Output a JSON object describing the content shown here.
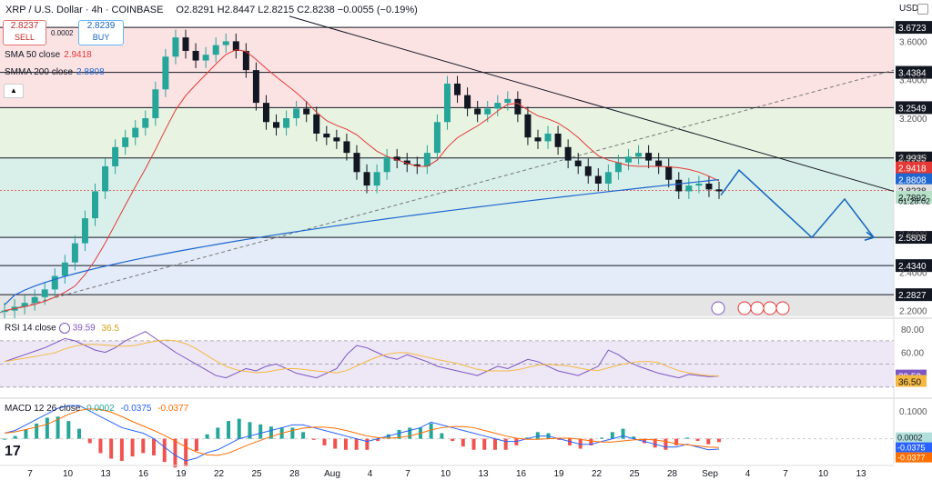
{
  "header": {
    "symbol": "XRP / U.S. Dollar · 4h · COINBASE",
    "ohlc": "O2.8291 H2.8447 L2.8215 C2.8238 −0.0055 (−0.19%)",
    "sell_price": "2.8237",
    "sell_label": "SELL",
    "buy_price": "2.8239",
    "buy_label": "BUY",
    "spread": "0.0002"
  },
  "legend": {
    "sma50_label": "SMA 50 close",
    "sma50_value": "2.9418",
    "smma200_label": "SMMA 200 close",
    "smma200_value": "2.8808"
  },
  "axis": {
    "currency": "USD",
    "time_labels": [
      "7",
      "10",
      "13",
      "16",
      "19",
      "22",
      "25",
      "28",
      "Aug",
      "4",
      "7",
      "10",
      "13",
      "16",
      "19",
      "22",
      "25",
      "28",
      "Sep",
      "4",
      "7",
      "10",
      "13"
    ]
  },
  "colors": {
    "candle_up": "#26a69a",
    "candle_down": "#131722",
    "sma50": "#e53935",
    "smma200": "#1e66d0",
    "projection": "#1565c0",
    "zone_red": "#fbe3e4",
    "zone_green": "#e8f3e2",
    "zone_teal": "#d9efe9",
    "zone_blue": "#e3ecf8",
    "zone_gray": "#e5e5e5",
    "rsi": "#7e57c2",
    "rsi_ma": "#f5b942",
    "macd": "#2962ff",
    "macd_signal": "#ff6d00"
  },
  "chart_data": [
    {
      "type": "candlestick",
      "price_levels": [
        3.6723,
        3.4384,
        3.2549,
        2.9935,
        2.5808,
        2.434,
        2.2827
      ],
      "y_ticks": [
        3.6,
        3.4,
        3.2,
        3.0,
        2.8,
        2.6,
        2.4,
        2.2
      ],
      "ylim": [
        2.17,
        3.72
      ],
      "current_price": 2.8238,
      "countdown": "01:28:02",
      "support_level": 2.7892,
      "sma50_last": 2.9418,
      "smma200_last": 2.8808,
      "price_path": [
        2.2,
        2.22,
        2.24,
        2.27,
        2.31,
        2.38,
        2.45,
        2.55,
        2.68,
        2.82,
        2.95,
        3.05,
        3.1,
        3.15,
        3.2,
        3.35,
        3.52,
        3.62,
        3.55,
        3.5,
        3.53,
        3.58,
        3.6,
        3.55,
        3.45,
        3.28,
        3.18,
        3.15,
        3.2,
        3.25,
        3.22,
        3.12,
        3.1,
        3.08,
        3.02,
        2.92,
        2.85,
        2.92,
        3.0,
        2.98,
        2.96,
        2.95,
        3.02,
        3.18,
        3.38,
        3.32,
        3.25,
        3.22,
        3.25,
        3.28,
        3.3,
        3.22,
        3.1,
        3.08,
        3.12,
        3.05,
        2.98,
        2.95,
        2.9,
        2.86,
        2.92,
        2.97,
        3.0,
        3.02,
        2.98,
        2.95,
        2.88,
        2.82,
        2.85,
        2.86,
        2.83,
        2.82
      ]
    },
    {
      "type": "line",
      "name": "RSI 14 close",
      "last_value": 39.59,
      "ma_value": 36.5,
      "y_ticks": [
        80.0,
        60.0
      ],
      "ylim": [
        22,
        88
      ],
      "bands": [
        70,
        50,
        30
      ],
      "values": [
        52,
        55,
        58,
        61,
        64,
        68,
        72,
        70,
        66,
        62,
        60,
        64,
        70,
        74,
        78,
        72,
        66,
        60,
        55,
        50,
        45,
        40,
        38,
        42,
        46,
        44,
        48,
        50,
        46,
        42,
        40,
        38,
        42,
        46,
        58,
        66,
        64,
        60,
        56,
        54,
        58,
        55,
        52,
        48,
        46,
        44,
        42,
        40,
        44,
        48,
        46,
        50,
        54,
        52,
        48,
        44,
        42,
        40,
        44,
        48,
        62,
        58,
        52,
        48,
        45,
        42,
        40,
        38,
        41,
        40,
        39,
        39.59
      ]
    },
    {
      "type": "line",
      "name": "MACD 12 26 close",
      "macd_value": 0.0002,
      "line_value": -0.0375,
      "signal_value": -0.0377,
      "y_ticks": [
        0.1,
        0.0
      ],
      "ylim": [
        -0.09,
        0.14
      ],
      "values": [
        0.02,
        0.03,
        0.05,
        0.07,
        0.09,
        0.11,
        0.12,
        0.12,
        0.1,
        0.08,
        0.06,
        0.04,
        0.03,
        0.02,
        0.0,
        -0.03,
        -0.06,
        -0.08,
        -0.07,
        -0.05,
        -0.04,
        -0.02,
        0.0,
        0.01,
        0.02,
        0.03,
        0.04,
        0.05,
        0.05,
        0.04,
        0.03,
        0.02,
        0.01,
        0.0,
        -0.01,
        0.0,
        0.01,
        0.02,
        0.03,
        0.04,
        0.06,
        0.05,
        0.04,
        0.03,
        0.02,
        0.01,
        0.0,
        -0.01,
        -0.01,
        0.0,
        0.01,
        0.01,
        0.0,
        -0.01,
        -0.02,
        -0.02,
        -0.01,
        0.0,
        0.01,
        0.0,
        -0.01,
        -0.02,
        -0.03,
        -0.03,
        -0.02,
        -0.03,
        -0.04,
        -0.0375
      ]
    }
  ]
}
